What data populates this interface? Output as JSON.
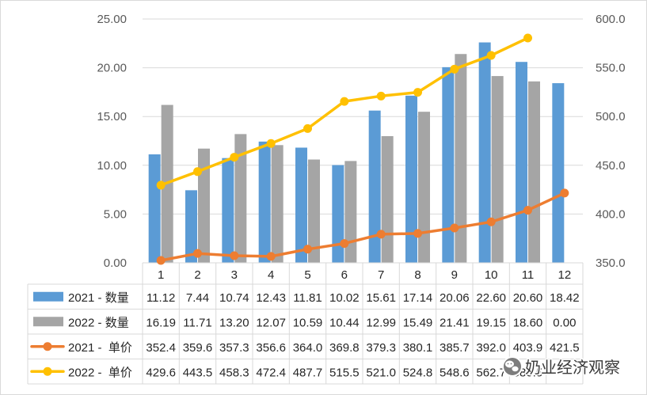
{
  "chart_data": {
    "type": "bar",
    "categories": [
      "1",
      "2",
      "3",
      "4",
      "5",
      "6",
      "7",
      "8",
      "9",
      "10",
      "11",
      "12"
    ],
    "series": [
      {
        "name": "2021 - 数量",
        "type": "bar",
        "axis": "left",
        "color": "#5B9BD5",
        "values": [
          11.12,
          7.44,
          10.74,
          12.43,
          11.81,
          10.02,
          15.61,
          17.14,
          20.06,
          22.6,
          20.6,
          18.42
        ],
        "table_text": [
          "11.12",
          "7.44",
          "10.74",
          "12.43",
          "11.81",
          "10.02",
          "15.61",
          "17.14",
          "20.06",
          "22.60",
          "20.60",
          "18.42"
        ]
      },
      {
        "name": "2022 - 数量",
        "type": "bar",
        "axis": "left",
        "color": "#A5A5A5",
        "values": [
          16.19,
          11.71,
          13.2,
          12.07,
          10.59,
          10.44,
          12.99,
          15.49,
          21.41,
          19.15,
          18.6,
          0.0
        ],
        "table_text": [
          "16.19",
          "11.71",
          "13.20",
          "12.07",
          "10.59",
          "10.44",
          "12.99",
          "15.49",
          "21.41",
          "19.15",
          "18.60",
          "0.00"
        ]
      },
      {
        "name": "2021 -  单价",
        "type": "line",
        "axis": "right",
        "color": "#ED7D31",
        "values": [
          352.4,
          359.6,
          357.3,
          356.6,
          364.0,
          369.8,
          379.3,
          380.1,
          385.7,
          392.0,
          403.9,
          421.5
        ],
        "table_text": [
          "352.4",
          "359.6",
          "357.3",
          "356.6",
          "364.0",
          "369.8",
          "379.3",
          "380.1",
          "385.7",
          "392.0",
          "403.9",
          "421.5"
        ]
      },
      {
        "name": "2022 -  单价",
        "type": "line",
        "axis": "right",
        "color": "#FFC000",
        "values": [
          429.6,
          443.5,
          458.3,
          472.4,
          487.7,
          515.5,
          521.0,
          524.8,
          548.6,
          562.7,
          580.5,
          null
        ],
        "table_text": [
          "429.6",
          "443.5",
          "458.3",
          "472.4",
          "487.7",
          "515.5",
          "521.0",
          "524.8",
          "548.6",
          "562.7",
          "580.5",
          ""
        ]
      }
    ],
    "y_left": {
      "tick_labels": [
        "0.00",
        "5.00",
        "10.00",
        "15.00",
        "20.00",
        "25.00"
      ],
      "ylim": [
        0,
        25
      ]
    },
    "y_right": {
      "tick_labels": [
        "350.0",
        "400.0",
        "450.0",
        "500.0",
        "550.0",
        "600.0"
      ],
      "ylim": [
        350,
        600
      ]
    },
    "grid": true,
    "legend": "data table below plot"
  },
  "watermark": {
    "text": "奶业经济观察",
    "icon": "wechat-icon"
  }
}
